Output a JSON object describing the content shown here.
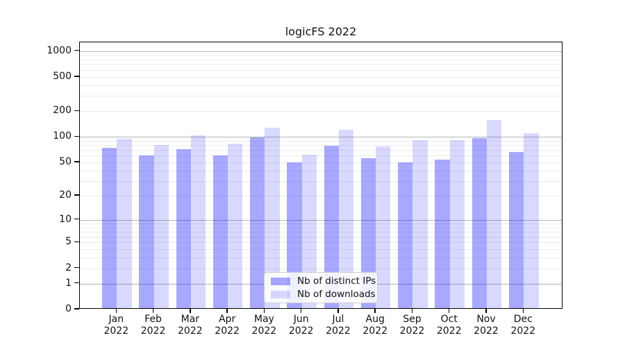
{
  "chart_data": {
    "type": "bar",
    "title": "logicFS 2022",
    "categories": [
      "Jan",
      "Feb",
      "Mar",
      "Apr",
      "May",
      "Jun",
      "Jul",
      "Aug",
      "Sep",
      "Oct",
      "Nov",
      "Dec"
    ],
    "category_year": "2022",
    "series": [
      {
        "name": "Nb of distinct IPs",
        "color": "rgba(0,0,255,0.34)",
        "values": [
          74,
          60,
          72,
          61,
          99,
          50,
          79,
          56,
          50,
          54,
          97,
          66
        ]
      },
      {
        "name": "Nb of downloads",
        "color": "rgba(0,0,255,0.15)",
        "values": [
          96,
          81,
          105,
          83,
          129,
          62,
          122,
          77,
          92,
          92,
          158,
          110
        ]
      }
    ],
    "yscale": "symlog",
    "ylim": [
      0,
      1267
    ],
    "yticks": [
      0,
      1,
      2,
      5,
      10,
      20,
      50,
      100,
      200,
      500,
      1000
    ],
    "grid": {
      "major_at": [
        1,
        10,
        100,
        1000
      ],
      "major_color": "#b3b3b3",
      "minor_color": "#ebebeb"
    },
    "legend": {
      "position": "lower center"
    }
  }
}
